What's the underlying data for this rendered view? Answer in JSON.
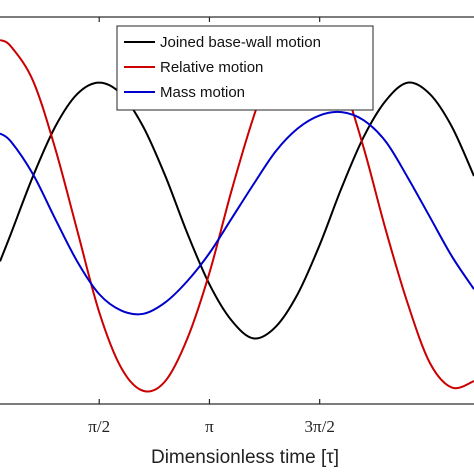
{
  "chart_data": {
    "type": "line",
    "title": "",
    "xlabel": "Dimensionless time [τ]",
    "ylabel": "",
    "xlim": [
      0.05,
      2.2
    ],
    "ylim": [
      -1.18,
      1.18
    ],
    "grid": false,
    "legend_position": "top-center",
    "x_ticks": [
      {
        "value": 0.5,
        "label": "π/2"
      },
      {
        "value": 1.0,
        "label": "π"
      },
      {
        "value": 1.5,
        "label": "3π/2"
      }
    ],
    "series": [
      {
        "name": "Joined base-wall motion",
        "color": "#000000",
        "x": [
          0.05,
          0.1,
          0.2,
          0.3,
          0.4,
          0.5,
          0.6,
          0.7,
          0.8,
          0.9,
          1.0,
          1.1,
          1.2,
          1.3,
          1.4,
          1.5,
          1.6,
          1.7,
          1.8,
          1.9,
          2.0,
          2.1,
          2.2
        ],
        "values": [
          -0.31,
          -0.14,
          0.21,
          0.51,
          0.71,
          0.78,
          0.71,
          0.51,
          0.21,
          -0.14,
          -0.45,
          -0.67,
          -0.78,
          -0.71,
          -0.51,
          -0.21,
          0.14,
          0.45,
          0.67,
          0.78,
          0.71,
          0.51,
          0.21
        ]
      },
      {
        "name": "Relative motion",
        "color": "#cc0000",
        "x": [
          0.05,
          0.1,
          0.2,
          0.3,
          0.4,
          0.5,
          0.6,
          0.7,
          0.8,
          0.9,
          1.0,
          1.1,
          1.2,
          1.3,
          1.4,
          1.5,
          1.6,
          1.7,
          1.8,
          1.9,
          2.0,
          2.1,
          2.2
        ],
        "values": [
          1.04,
          1.0,
          0.79,
          0.38,
          -0.12,
          -0.62,
          -0.96,
          -1.1,
          -1.04,
          -0.78,
          -0.38,
          0.12,
          0.57,
          0.93,
          1.08,
          1.04,
          0.8,
          0.38,
          -0.12,
          -0.57,
          -0.93,
          -1.08,
          -1.04
        ]
      },
      {
        "name": "Mass motion",
        "color": "#0000cc",
        "x": [
          0.05,
          0.1,
          0.2,
          0.3,
          0.4,
          0.5,
          0.6,
          0.7,
          0.8,
          0.9,
          1.0,
          1.1,
          1.2,
          1.3,
          1.4,
          1.5,
          1.6,
          1.7,
          1.8,
          1.9,
          2.0,
          2.1,
          2.2
        ],
        "values": [
          0.47,
          0.42,
          0.22,
          -0.05,
          -0.31,
          -0.51,
          -0.61,
          -0.63,
          -0.56,
          -0.43,
          -0.26,
          -0.05,
          0.16,
          0.36,
          0.5,
          0.58,
          0.6,
          0.55,
          0.42,
          0.2,
          -0.04,
          -0.28,
          -0.48
        ]
      }
    ]
  }
}
